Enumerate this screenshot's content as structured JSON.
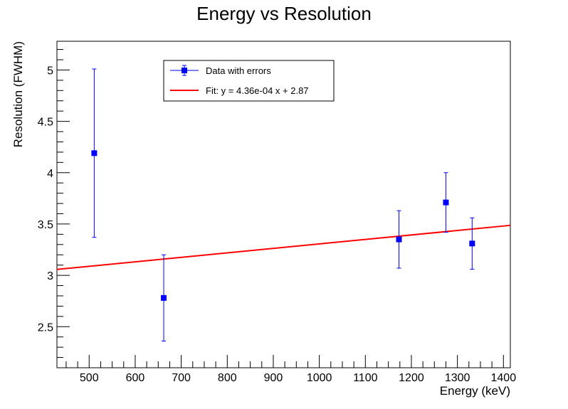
{
  "chart_data": {
    "type": "scatter",
    "title": "Energy vs Resolution",
    "xlabel": "Energy (keV)",
    "ylabel": "Resolution (FWHM)",
    "xlim": [
      430,
      1415
    ],
    "ylim": [
      2.1,
      5.28
    ],
    "x_ticks": [
      500,
      600,
      700,
      800,
      900,
      1000,
      1100,
      1200,
      1300,
      1400
    ],
    "y_ticks": [
      2.5,
      3,
      3.5,
      4,
      4.5,
      5
    ],
    "x_tick_labels": [
      "500",
      "600",
      "700",
      "800",
      "900",
      "1000",
      "1100",
      "1200",
      "1300",
      "1400"
    ],
    "y_tick_labels": [
      "2.5",
      "3",
      "3.5",
      "4",
      "4.5",
      "5"
    ],
    "grid": false,
    "legend_position": "top-left",
    "series": [
      {
        "name": "Data with errors",
        "kind": "points-with-errors",
        "color": "#0000ff",
        "points": [
          {
            "x": 511,
            "y": 4.19,
            "err": 0.82
          },
          {
            "x": 662,
            "y": 2.78,
            "err": 0.42
          },
          {
            "x": 1173,
            "y": 3.35,
            "err": 0.28
          },
          {
            "x": 1275,
            "y": 3.71,
            "err": 0.29
          },
          {
            "x": 1332,
            "y": 3.31,
            "err": 0.25
          }
        ]
      },
      {
        "name": "Fit: y = 4.36e-04 x + 2.87",
        "kind": "fit-line",
        "color": "#ff0000",
        "slope": 0.000436,
        "intercept": 2.87,
        "x_range": [
          430,
          1415
        ]
      }
    ]
  }
}
